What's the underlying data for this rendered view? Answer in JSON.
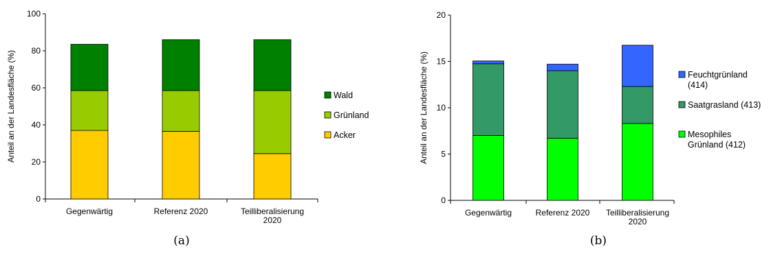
{
  "chart_data": [
    {
      "type": "bar",
      "stacked": true,
      "caption": "(a)",
      "ylabel": "Anteil an der Landesfläche (%)",
      "ylim": [
        0,
        100
      ],
      "yticks": [
        0,
        20,
        40,
        60,
        80,
        100
      ],
      "categories": [
        [
          "Gegenwärtig"
        ],
        [
          "Referenz 2020"
        ],
        [
          "Teilliberalisierung",
          "2020"
        ]
      ],
      "series": [
        {
          "name": "Acker",
          "color": "#ffcc00",
          "values": [
            37,
            36.5,
            24.5
          ]
        },
        {
          "name": "Grünland",
          "color": "#99cc00",
          "values": [
            21.5,
            22,
            34
          ]
        },
        {
          "name": "Wald",
          "color": "#008000",
          "values": [
            25,
            27.5,
            27.5
          ]
        }
      ],
      "legend_order": [
        "Wald",
        "Grünland",
        "Acker"
      ],
      "legend_position": "right"
    },
    {
      "type": "bar",
      "stacked": true,
      "caption": "(b)",
      "ylabel": "Anteil an der Landesfläche (%)",
      "ylim": [
        0,
        20
      ],
      "yticks": [
        0,
        5,
        10,
        15,
        20
      ],
      "categories": [
        [
          "Gegenwärtig"
        ],
        [
          "Referenz 2020"
        ],
        [
          "Teilliberalisierung",
          "2020"
        ]
      ],
      "series": [
        {
          "name": [
            "Mesophiles",
            "Grünland (412)"
          ],
          "color": "#00ff00",
          "values": [
            7,
            6.7,
            8.3
          ]
        },
        {
          "name": [
            "Saatgrasland (413)"
          ],
          "color": "#339966",
          "values": [
            7.75,
            7.3,
            4
          ]
        },
        {
          "name": [
            "Feuchtgrünland",
            "(414)"
          ],
          "color": "#3366ff",
          "values": [
            0.3,
            0.7,
            4.45
          ]
        }
      ],
      "legend_order": [
        2,
        1,
        0
      ],
      "legend_position": "right"
    }
  ]
}
